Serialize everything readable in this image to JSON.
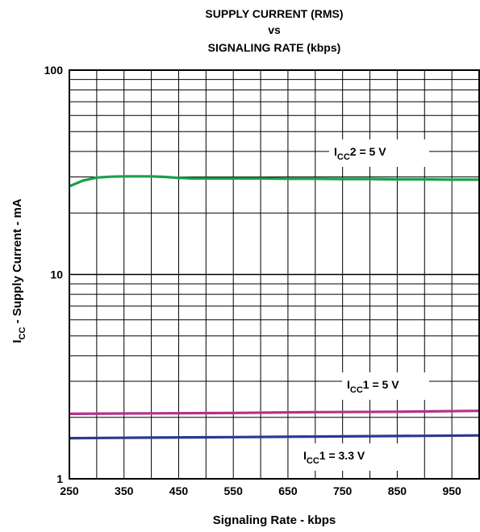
{
  "chart_data": {
    "type": "line",
    "title": [
      "SUPPLY CURRENT (RMS)",
      "vs",
      "SIGNALING RATE (kbps)"
    ],
    "xlabel": "Signaling Rate - kbps",
    "ylabel": {
      "main": "I",
      "sub": "CC",
      "rest": " - Supply Current - mA"
    },
    "xlim": [
      250,
      1000
    ],
    "ylim": [
      1,
      100
    ],
    "yscale": "log",
    "grid": true,
    "x_ticks": [
      250,
      350,
      450,
      550,
      650,
      750,
      850,
      950
    ],
    "y_ticks": [
      1,
      10,
      100
    ],
    "colors": {
      "grid": "#000000",
      "bg": "#ffffff"
    },
    "series": [
      {
        "name": {
          "main": "I",
          "sub": "CC",
          "rest": "2 = 5 V"
        },
        "color": "#17a04a",
        "x": [
          250,
          275,
          300,
          325,
          350,
          375,
          400,
          425,
          450,
          475,
          500,
          550,
          600,
          650,
          700,
          750,
          800,
          850,
          900,
          950,
          1000
        ],
        "y": [
          27.0,
          28.8,
          29.8,
          30.1,
          30.2,
          30.2,
          30.2,
          30.0,
          29.7,
          29.5,
          29.5,
          29.5,
          29.5,
          29.4,
          29.4,
          29.3,
          29.3,
          29.2,
          29.2,
          29.1,
          29.1
        ]
      },
      {
        "name": {
          "main": "I",
          "sub": "CC",
          "rest": "1 = 5 V"
        },
        "color": "#b5308c",
        "x": [
          250,
          400,
          550,
          700,
          850,
          1000
        ],
        "y": [
          2.08,
          2.09,
          2.1,
          2.12,
          2.13,
          2.15
        ]
      },
      {
        "name": {
          "main": "I",
          "sub": "CC",
          "rest": "1 = 3.3 V"
        },
        "color": "#2b3990",
        "x": [
          250,
          400,
          550,
          700,
          850,
          1000
        ],
        "y": [
          1.58,
          1.59,
          1.6,
          1.61,
          1.62,
          1.63
        ]
      }
    ]
  }
}
